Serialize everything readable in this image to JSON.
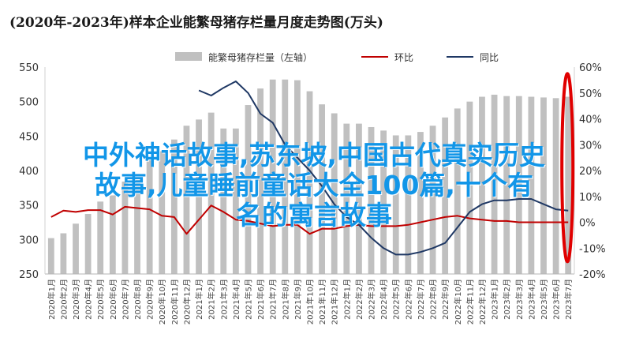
{
  "chart_data": {
    "type": "bar+line",
    "title": "(2020年-2023年)样本企业能繁母猪存栏量月度走势图(万头)",
    "legend": [
      "能繁母猪存栏量（左轴）",
      "环比",
      "同比"
    ],
    "legend_position": "top",
    "categories": [
      "2020-01",
      "2020-02",
      "2020-03",
      "2020-04",
      "2020-05",
      "2020-06",
      "2020-07",
      "2020-08",
      "2020-09",
      "2020-10",
      "2020-11",
      "2020-12",
      "2021-01",
      "2021-02",
      "2021-03",
      "2021-04",
      "2021-05",
      "2021-06",
      "2021-07",
      "2021-08",
      "2021-09",
      "2021-10",
      "2021-11",
      "2021-12",
      "2022-01",
      "2022-02",
      "2022-03",
      "2022-04",
      "2022-05",
      "2022-06",
      "2022-07",
      "2022-08",
      "2022-09",
      "2022-10",
      "2022-11",
      "2022-12",
      "2023-01",
      "2023-02",
      "2023-03",
      "2023-04",
      "2023-05",
      "2023-06",
      "2023-07"
    ],
    "xlabels": [
      "2020年1月",
      "2020年2月",
      "2020年3月",
      "2020年4月",
      "2020年5月",
      "2020年6月",
      "2020年7月",
      "2020年8月",
      "2020年9月",
      "2020年10月",
      "2020年11月",
      "2020年12月",
      "2021年1月",
      "2021年2月",
      "2021年3月",
      "2021年4月",
      "2021年5月",
      "2021年6月",
      "2021年7月",
      "2021年8月",
      "2021年9月",
      "2021年10月",
      "2021年11月",
      "2021年12月",
      "2022年1月",
      "2022年2月",
      "2022年3月",
      "2022年4月",
      "2022年5月",
      "2022年6月",
      "2022年7月",
      "2022年8月",
      "2022年9月",
      "2022年10月",
      "2022年11月",
      "2022年12月",
      "2023年1月",
      "2023年2月",
      "2023年3月",
      "2023年4月",
      "2023年5月",
      "2023年6月",
      "2023年7月"
    ],
    "left_axis": {
      "ylim": [
        250,
        550
      ],
      "ticks": [
        "250",
        "300",
        "350",
        "400",
        "450",
        "500",
        "550"
      ]
    },
    "right_axis": {
      "ylim": [
        -0.2,
        0.6
      ],
      "ticks": [
        "-20%",
        "-10%",
        "0%",
        "10%",
        "20%",
        "30%",
        "40%",
        "50%",
        "60%"
      ]
    },
    "series": [
      {
        "name": "能繁母猪存栏量（左轴）",
        "type": "bar",
        "axis": "left",
        "color": "#c0c0c0",
        "values": [
          302,
          309,
          323,
          337,
          355,
          364,
          384,
          395,
          415,
          428,
          445,
          465,
          474,
          484,
          461,
          461,
          495,
          519,
          532,
          532,
          531,
          515,
          496,
          483,
          468,
          468,
          463,
          458,
          451,
          451,
          456,
          465,
          477,
          490,
          500,
          507,
          510,
          508,
          508,
          507,
          506,
          505,
          507
        ]
      },
      {
        "name": "环比",
        "type": "line",
        "axis": "right",
        "color": "#c00000",
        "values": [
          0.02,
          0.045,
          0.04,
          0.047,
          0.047,
          0.03,
          0.06,
          0.055,
          0.05,
          0.025,
          0.02,
          -0.045,
          0.01,
          0.065,
          0.04,
          0.01,
          0.005,
          -0.005,
          -0.015,
          -0.01,
          -0.01,
          -0.045,
          -0.025,
          -0.025,
          -0.015,
          -0.01,
          -0.015,
          -0.015,
          -0.015,
          -0.01,
          0.0,
          0.01,
          0.02,
          0.025,
          0.015,
          0.01,
          0.005,
          0.005,
          0.0,
          0.0,
          0.0,
          0.0,
          0.0
        ]
      },
      {
        "name": "同比",
        "type": "line",
        "axis": "right",
        "color": "#1f3864",
        "values": [
          null,
          null,
          null,
          null,
          null,
          null,
          null,
          null,
          null,
          null,
          null,
          null,
          0.51,
          0.49,
          0.52,
          0.545,
          0.5,
          0.42,
          0.385,
          0.3,
          0.25,
          0.2,
          0.14,
          0.07,
          0.02,
          -0.01,
          -0.06,
          -0.1,
          -0.125,
          -0.125,
          -0.115,
          -0.1,
          -0.08,
          -0.02,
          0.04,
          0.07,
          0.085,
          0.085,
          0.09,
          0.09,
          0.07,
          0.05,
          0.045
        ]
      }
    ],
    "annotation": "red ellipse highlighting the last month"
  },
  "overlay_text": [
    "中外神话故事,苏东坡,中国古代真实历史",
    "故事,儿童睡前童话大全100篇,十个有",
    "名的寓言故事"
  ],
  "colors": {
    "bar": "#c0c0c0",
    "mom": "#c00000",
    "yoy": "#1f3864",
    "ellipse": "#e00000",
    "overlay": "#1296e8"
  }
}
